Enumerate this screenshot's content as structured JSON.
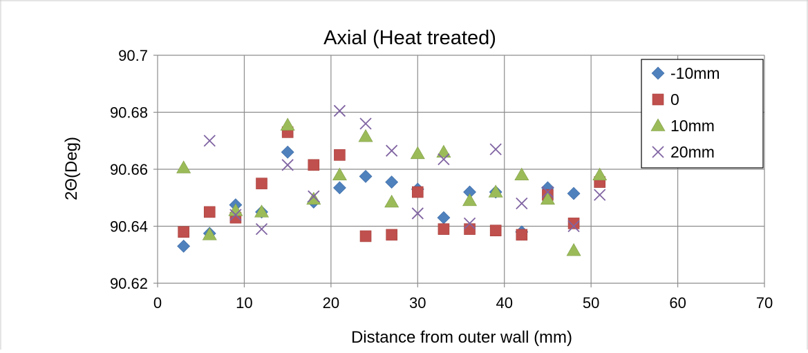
{
  "chart_data": {
    "type": "scatter",
    "title": "Axial (Heat treated)",
    "xlabel": "Distance from outer wall (mm)",
    "ylabel": "2Θ(Deg)",
    "xlim": [
      0,
      70
    ],
    "ylim": [
      90.62,
      90.7
    ],
    "xticks": [
      0,
      10,
      20,
      30,
      40,
      50,
      60,
      70
    ],
    "yticks": [
      90.62,
      90.64,
      90.66,
      90.68,
      90.7
    ],
    "xtick_labels": [
      "0",
      "10",
      "20",
      "30",
      "40",
      "50",
      "60",
      "70"
    ],
    "ytick_labels": [
      "90.62",
      "90.64",
      "90.66",
      "90.68",
      "90.7"
    ],
    "grid": true,
    "legend_position": "top-right",
    "series": [
      {
        "name": "-10mm",
        "marker": "diamond",
        "color": "#4f81bd",
        "points": [
          [
            3,
            90.633
          ],
          [
            6,
            90.6375
          ],
          [
            9,
            90.6475
          ],
          [
            12,
            90.645
          ],
          [
            15,
            90.666
          ],
          [
            18,
            90.6485
          ],
          [
            21,
            90.6535
          ],
          [
            24,
            90.6575
          ],
          [
            27,
            90.6555
          ],
          [
            30,
            90.653
          ],
          [
            33,
            90.643
          ],
          [
            36,
            90.652
          ],
          [
            39,
            90.652
          ],
          [
            42,
            90.638
          ],
          [
            45,
            90.6535
          ],
          [
            48,
            90.6515
          ],
          [
            51,
            90.6565
          ]
        ]
      },
      {
        "name": "0",
        "marker": "square",
        "color": "#c0504d",
        "points": [
          [
            3,
            90.638
          ],
          [
            6,
            90.645
          ],
          [
            9,
            90.643
          ],
          [
            12,
            90.655
          ],
          [
            15,
            90.673
          ],
          [
            18,
            90.6615
          ],
          [
            21,
            90.665
          ],
          [
            24,
            90.6365
          ],
          [
            27,
            90.637
          ],
          [
            30,
            90.652
          ],
          [
            33,
            90.639
          ],
          [
            36,
            90.639
          ],
          [
            39,
            90.6385
          ],
          [
            42,
            90.637
          ],
          [
            45,
            90.651
          ],
          [
            48,
            90.641
          ],
          [
            51,
            90.6555
          ]
        ]
      },
      {
        "name": "10mm",
        "marker": "triangle",
        "color": "#9bbb59",
        "points": [
          [
            3,
            90.6605
          ],
          [
            6,
            90.637
          ],
          [
            9,
            90.6455
          ],
          [
            12,
            90.645
          ],
          [
            15,
            90.6755
          ],
          [
            18,
            90.6495
          ],
          [
            21,
            90.658
          ],
          [
            24,
            90.6715
          ],
          [
            27,
            90.6485
          ],
          [
            30,
            90.6655
          ],
          [
            33,
            90.666
          ],
          [
            36,
            90.649
          ],
          [
            39,
            90.652
          ],
          [
            42,
            90.658
          ],
          [
            45,
            90.6495
          ],
          [
            48,
            90.6315
          ],
          [
            51,
            90.658
          ]
        ]
      },
      {
        "name": "20mm",
        "marker": "x",
        "color": "#8064a2",
        "points": [
          [
            6,
            90.67
          ],
          [
            9,
            90.644
          ],
          [
            12,
            90.639
          ],
          [
            15,
            90.6615
          ],
          [
            18,
            90.6505
          ],
          [
            21,
            90.6805
          ],
          [
            24,
            90.676
          ],
          [
            27,
            90.6665
          ],
          [
            30,
            90.6445
          ],
          [
            33,
            90.6635
          ],
          [
            36,
            90.641
          ],
          [
            39,
            90.667
          ],
          [
            42,
            90.648
          ],
          [
            45,
            90.652
          ],
          [
            48,
            90.64
          ],
          [
            51,
            90.651
          ]
        ]
      }
    ]
  }
}
